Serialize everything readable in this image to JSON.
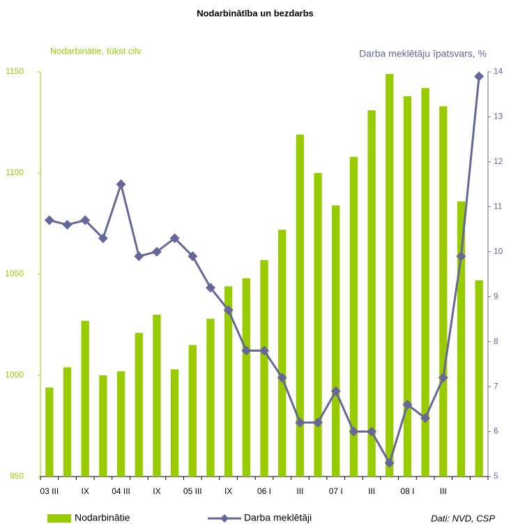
{
  "chart_data": {
    "type": "bar",
    "title": "Nodarbinātība un bezdarbs",
    "y_label": "Nodarbinātie, tūkst cilv",
    "y2_label": "Darba meklētāju īpatsvars, %",
    "source": "Dati: NVD, CSP",
    "categories": [
      "03 III",
      null,
      "IX",
      null,
      "04 III",
      null,
      "IX",
      null,
      "05 III",
      null,
      "IX",
      null,
      "06 I",
      null,
      "III",
      null,
      "07 I",
      null,
      "III",
      null,
      "08 I",
      null,
      "III",
      null,
      null
    ],
    "series": [
      {
        "name": "Nodarbinātie",
        "type": "bar",
        "color": "#99cc00",
        "values": [
          994,
          1004,
          1027,
          1000,
          1002,
          1021,
          1030,
          1003,
          1015,
          1028,
          1044,
          1048,
          1057,
          1072,
          1119,
          1100,
          1084,
          1108,
          1131,
          1149,
          1138,
          1142,
          1133,
          1086,
          1047
        ]
      },
      {
        "name": "Darba meklētāji",
        "type": "line",
        "axis": "y2",
        "color": "#666699",
        "values": [
          10.7,
          10.6,
          10.7,
          10.3,
          11.5,
          9.9,
          10.0,
          10.3,
          9.9,
          9.2,
          8.7,
          7.8,
          7.8,
          7.2,
          6.2,
          6.2,
          6.9,
          6.0,
          6.0,
          5.3,
          6.6,
          6.3,
          7.2,
          9.9,
          13.9
        ]
      }
    ],
    "ylim": [
      950,
      1150
    ],
    "yticks": [
      950,
      1000,
      1050,
      1100,
      1150
    ],
    "y2lim": [
      5,
      14
    ],
    "y2ticks": [
      5,
      6,
      7,
      8,
      9,
      10,
      11,
      12,
      13,
      14
    ]
  }
}
